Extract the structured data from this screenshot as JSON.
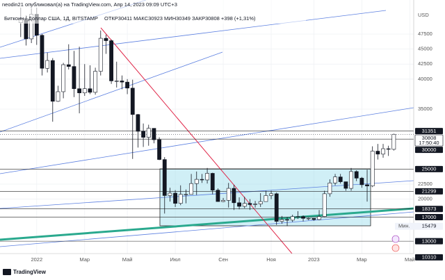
{
  "header": {
    "author_line": "neodin21 опубликовал(а) на TradingView.com, Апр 14, 2023 09:09 UTC+3"
  },
  "footer": {
    "brand": "TradingView"
  },
  "chart_data": {
    "type": "candlestick",
    "title": "Биткоин / Доллар США, 1Д, BITSTAMP",
    "subtitle": "ОТКР30411 МАКС30923 МИН30349 ЗАКР30808 +398 (+1,31%)",
    "y_axis_label": "USD",
    "categories": [
      null,
      null,
      null,
      "2022",
      null,
      null,
      null,
      null,
      null,
      null,
      null,
      null,
      "Мар",
      null,
      null,
      null,
      null,
      null,
      null,
      null,
      "Май",
      null,
      null,
      null,
      null,
      null,
      null,
      null,
      null,
      "Июл",
      null,
      null,
      null,
      null,
      null,
      null,
      null,
      null,
      "Сен",
      null,
      null,
      null,
      null,
      null,
      null,
      null,
      null,
      "Ноя",
      null,
      null,
      null,
      null,
      null,
      null,
      null,
      "2023",
      null,
      null,
      null,
      null,
      null,
      null,
      null,
      null,
      "Мар",
      null,
      null,
      null,
      null,
      null,
      null,
      null,
      null,
      "Май",
      null
    ],
    "open": [
      49400,
      50100,
      46700,
      50800,
      47300,
      41800,
      43100,
      36300,
      37900,
      42400,
      42100,
      38400,
      37700,
      38400,
      37800,
      41300,
      46800,
      46400,
      39700,
      39700,
      39500,
      38500,
      34100,
      31300,
      30300,
      31800,
      29900,
      26600,
      20600,
      21000,
      19300,
      20800,
      20800,
      22600,
      23300,
      23200,
      24300,
      21500,
      19600,
      19800,
      21800,
      19400,
      18800,
      19300,
      19100,
      19200,
      19600,
      20600,
      20900,
      16300,
      16600,
      16500,
      17100,
      17100,
      16800,
      16800,
      16600,
      17100,
      20900,
      22700,
      23700,
      22900,
      21800,
      24600,
      23500,
      22400,
      22200,
      28000,
      27500,
      28400,
      28300,
      null,
      null,
      null,
      null
    ],
    "high": [
      51900,
      50600,
      51800,
      51900,
      47500,
      44400,
      43500,
      38900,
      42700,
      45800,
      44700,
      45400,
      42500,
      42300,
      41900,
      48100,
      47400,
      46600,
      42900,
      40600,
      40000,
      39900,
      34200,
      32600,
      32400,
      31800,
      30300,
      27000,
      21900,
      21500,
      22300,
      21600,
      24200,
      24600,
      24200,
      25200,
      24400,
      21800,
      20200,
      22700,
      22400,
      20300,
      20400,
      20000,
      19700,
      21000,
      21400,
      21400,
      21100,
      17200,
      17000,
      17400,
      18000,
      17300,
      16900,
      16800,
      18200,
      21400,
      23300,
      24200,
      24200,
      22900,
      25200,
      24800,
      23700,
      24900,
      28800,
      29200,
      29200,
      28900,
      30900,
      null,
      null,
      null,
      null
    ],
    "low": [
      47000,
      45600,
      46000,
      45700,
      40600,
      41100,
      32900,
      36200,
      36800,
      41600,
      37000,
      34300,
      37200,
      37500,
      37400,
      40600,
      44200,
      39200,
      38600,
      38300,
      37500,
      26700,
      28600,
      28700,
      28900,
      29300,
      26500,
      17600,
      19600,
      18700,
      19000,
      19300,
      20800,
      20700,
      22700,
      22600,
      20800,
      19600,
      19500,
      18600,
      18200,
      18300,
      18500,
      18200,
      18600,
      18700,
      19600,
      20000,
      15700,
      15900,
      15500,
      16200,
      16700,
      16300,
      16500,
      16400,
      16500,
      17000,
      20400,
      22300,
      22600,
      21400,
      21400,
      23000,
      21900,
      19600,
      22000,
      26600,
      26900,
      27200,
      28100,
      null,
      null,
      null,
      null
    ],
    "close": [
      50100,
      46700,
      50800,
      47300,
      41800,
      43100,
      36300,
      37900,
      42400,
      42100,
      38400,
      37700,
      38400,
      37800,
      41300,
      46800,
      46400,
      39700,
      39700,
      39500,
      38500,
      34100,
      31300,
      30300,
      31800,
      29900,
      26600,
      20600,
      21000,
      19300,
      20800,
      20800,
      22600,
      23300,
      23200,
      24300,
      21500,
      19600,
      19800,
      21800,
      19400,
      18800,
      19300,
      19100,
      19200,
      19600,
      20600,
      20900,
      16300,
      16600,
      16500,
      17100,
      17100,
      16800,
      16800,
      16600,
      17100,
      20900,
      22700,
      23700,
      22900,
      21800,
      24600,
      23500,
      22400,
      22200,
      28000,
      27500,
      28400,
      28300,
      30808,
      null,
      null,
      null,
      null
    ],
    "up_color": "#ffffff",
    "down_color": "#131722",
    "wick_color": "#131722",
    "ylim": [
      10930,
      52250
    ],
    "yticks": [
      20000,
      22500,
      35000,
      40000,
      42500,
      45000,
      47500
    ],
    "grid": true,
    "levels": [
      {
        "value": 31351,
        "line": true
      },
      {
        "value": 30000,
        "line": true
      },
      {
        "value": 25000,
        "line": true
      },
      {
        "value": 21299,
        "line": true
      },
      {
        "value": 18373,
        "line": true
      },
      {
        "value": 17000,
        "line": true
      },
      {
        "value": 13000,
        "line": true
      },
      {
        "value": 10310,
        "line": false
      }
    ],
    "current_price": {
      "value": 30808,
      "countdown": "17:50:40",
      "color": "#131722"
    },
    "min_marker": {
      "label": "Мин.",
      "value": 15479
    }
  }
}
